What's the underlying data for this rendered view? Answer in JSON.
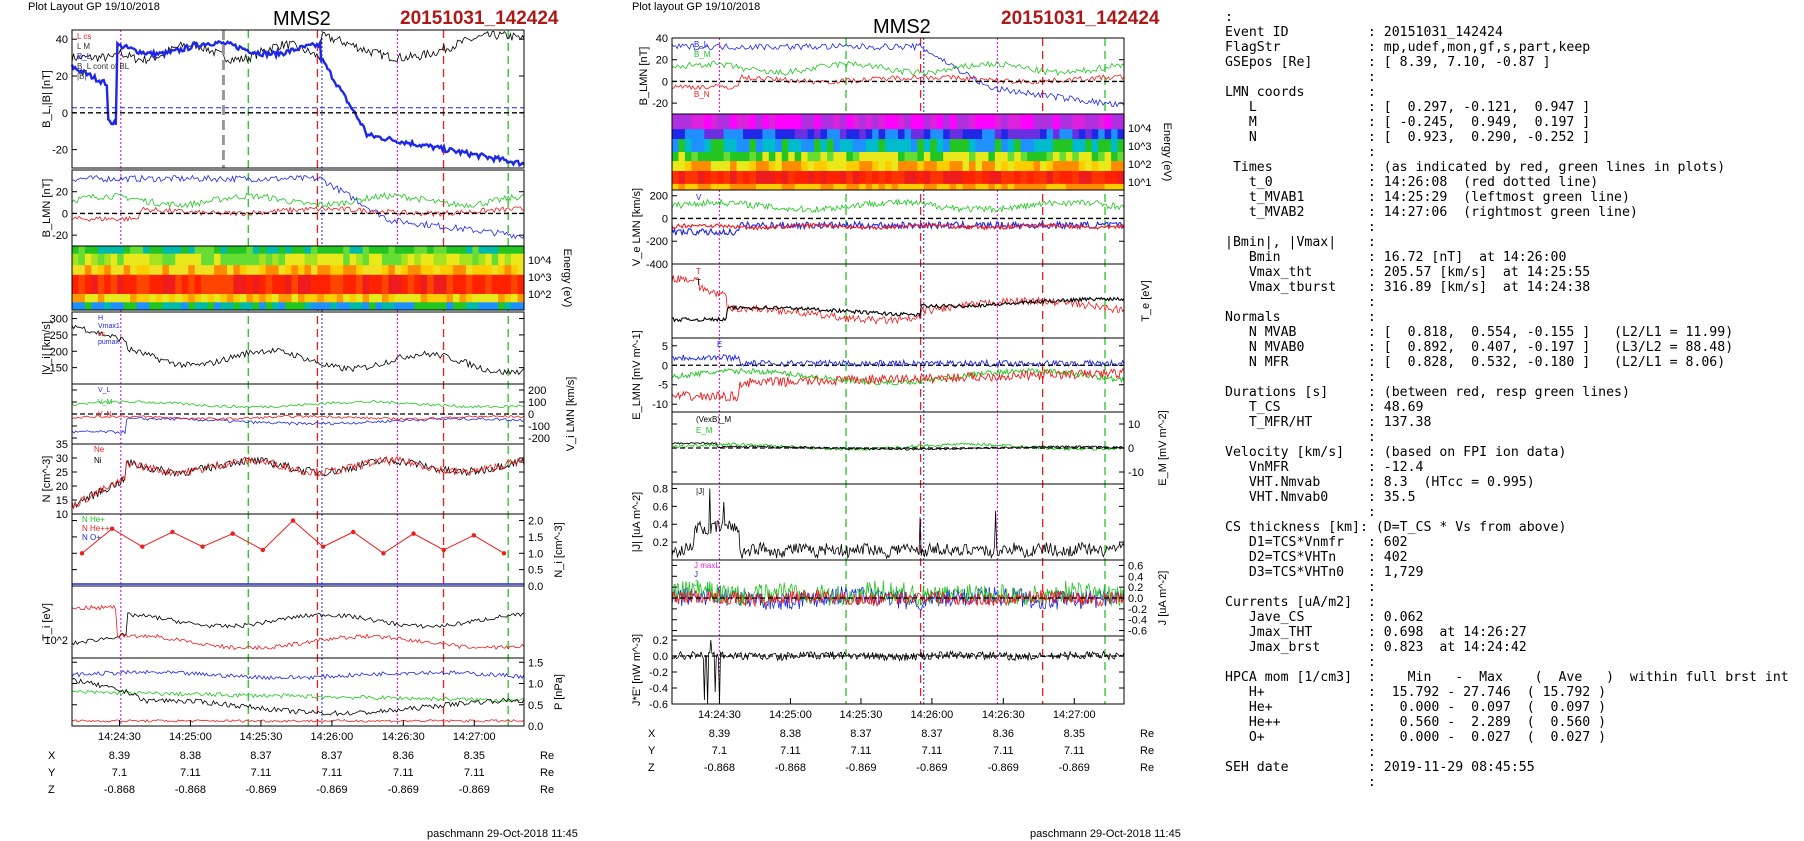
{
  "left": {
    "header": "Plot Layout GP 19/10/2018",
    "sat": "MMS2",
    "event": "20151031_142424",
    "footer": "paschmann 29-Oct-2018 11:45",
    "time_ticks": [
      "14:24:30",
      "14:25:00",
      "14:25:30",
      "14:26:00",
      "14:26:30",
      "14:27:00"
    ],
    "pos_rows": [
      {
        "label": "X",
        "values": [
          "8.39",
          "8.38",
          "8.37",
          "8.37",
          "8.36",
          "8.35"
        ],
        "unit": "Re"
      },
      {
        "label": "Y",
        "values": [
          "7.1",
          "7.11",
          "7.11",
          "7.11",
          "7.11",
          "7.11"
        ],
        "unit": "Re"
      },
      {
        "label": "Z",
        "values": [
          "-0.868",
          "-0.868",
          "-0.869",
          "-0.869",
          "-0.869",
          "-0.869"
        ],
        "unit": "Re"
      }
    ]
  },
  "right": {
    "header": "Plot layout GP 19/10/2018",
    "sat": "MMS2",
    "event": "20151031_142424",
    "footer": "paschmann 29-Oct-2018 11:45",
    "time_ticks": [
      "14:24:30",
      "14:25:00",
      "14:25:30",
      "14:26:00",
      "14:26:30",
      "14:27:00"
    ],
    "pos_rows": [
      {
        "label": "X",
        "values": [
          "8.39",
          "8.38",
          "8.37",
          "8.37",
          "8.36",
          "8.35"
        ],
        "unit": "Re"
      },
      {
        "label": "Y",
        "values": [
          "7.1",
          "7.11",
          "7.11",
          "7.11",
          "7.11",
          "7.11"
        ],
        "unit": "Re"
      },
      {
        "label": "Z",
        "values": [
          "-0.868",
          "-0.868",
          "-0.869",
          "-0.869",
          "-0.869",
          "-0.869"
        ],
        "unit": "Re"
      }
    ]
  },
  "colors": {
    "red": "#ee1c1c",
    "green": "#22c522",
    "blue": "#1e28e6",
    "magenta": "#dd22dd",
    "black": "#000000",
    "darkred": "#b01818"
  },
  "chart_data": [
    {
      "type": "line",
      "panel": "left",
      "ylabel": "B_L,|B| [nT]",
      "ylim": [
        -30,
        45
      ],
      "yticks": [
        -20,
        0,
        20,
        40
      ],
      "series": [
        {
          "name": "|B|",
          "color": "#000000"
        },
        {
          "name": "B_L",
          "color": "#1e28e6"
        }
      ],
      "legend": [
        "L cs",
        "L M",
        "B_L",
        "B_L cont of BL",
        "|B|"
      ]
    },
    {
      "type": "line",
      "panel": "left",
      "ylabel": "B_LMN [nT]",
      "ylim": [
        -30,
        40
      ],
      "yticks": [
        -20,
        0,
        20
      ],
      "series": [
        {
          "name": "B_L",
          "color": "#1e28e6"
        },
        {
          "name": "B_M",
          "color": "#22c522"
        },
        {
          "name": "B_N",
          "color": "#ee1c1c"
        }
      ]
    },
    {
      "type": "heatmap",
      "panel": "left",
      "ylabel": "Energy (eV)",
      "ytick_labels": [
        "10^2",
        "10^3",
        "10^4"
      ]
    },
    {
      "type": "line",
      "panel": "left",
      "ylabel": "|V_i| [km/s]",
      "ylim": [
        100,
        320
      ],
      "yticks": [
        150,
        200,
        250,
        300
      ],
      "series": [
        {
          "name": "V_i",
          "color": "#000000"
        }
      ],
      "legend": [
        "H",
        "Vmax1",
        "cs",
        "pumax"
      ]
    },
    {
      "type": "line",
      "panel": "left",
      "ylabel": "V_i LMN [km/s]",
      "ylim": [
        -250,
        250
      ],
      "yticks": [
        -200,
        -100,
        0,
        100,
        200
      ],
      "series": [
        {
          "name": "V_L",
          "color": "#1e28e6"
        },
        {
          "name": "V_M",
          "color": "#22c522"
        },
        {
          "name": "V_N",
          "color": "#ee1c1c"
        }
      ],
      "legend": [
        "V_L",
        "V_M",
        "V_N"
      ]
    },
    {
      "type": "line",
      "panel": "left",
      "ylabel": "N [cm^-3]",
      "ylim": [
        10,
        35
      ],
      "yticks": [
        10,
        15,
        20,
        25,
        30,
        35
      ],
      "series": [
        {
          "name": "Ne",
          "color": "#ee1c1c"
        },
        {
          "name": "Ni",
          "color": "#000000"
        }
      ],
      "legend": [
        "Ne",
        "Ni"
      ]
    },
    {
      "type": "line",
      "panel": "left",
      "ylabel": "N_i [cm^-3]",
      "ylim": [
        0,
        2.2
      ],
      "yticks": [
        0.0,
        0.5,
        1.0,
        1.5,
        2.0
      ],
      "series": [
        {
          "name": "N He++",
          "color": "#ee1c1c",
          "values": [
            1.0,
            1.75,
            1.2,
            1.65,
            1.2,
            1.6,
            1.1,
            2.0,
            1.2,
            1.65,
            1.0,
            1.6,
            1.1,
            1.55,
            1.0
          ]
        }
      ],
      "legend": [
        "N He+",
        "N He++",
        "N O+"
      ]
    },
    {
      "type": "line",
      "panel": "left",
      "ylabel": "T_i [eV]",
      "ytick_labels": [
        "10^2"
      ],
      "series": [
        {
          "name": "T_par",
          "color": "#ee1c1c"
        },
        {
          "name": "T_perp",
          "color": "#000000"
        }
      ],
      "legend": [
        "T",
        "T",
        "T"
      ]
    },
    {
      "type": "line",
      "panel": "left",
      "ylabel": "P [nPa]",
      "ylim": [
        0,
        1.6
      ],
      "yticks": [
        0.0,
        0.5,
        1.0,
        1.5
      ],
      "series": [
        {
          "name": "P_B",
          "color": "#1e28e6"
        },
        {
          "name": "P",
          "color": "#22c522"
        },
        {
          "name": "P_p",
          "color": "#000000"
        },
        {
          "name": "P_e",
          "color": "#ee1c1c"
        }
      ],
      "legend": [
        "P",
        "P",
        "P",
        "P"
      ]
    },
    {
      "type": "line",
      "panel": "right",
      "ylabel": "B_LMN [nT]",
      "ylim": [
        -30,
        40
      ],
      "yticks": [
        -20,
        0,
        20,
        40
      ],
      "series": [
        {
          "name": "B_L",
          "color": "#1e28e6"
        },
        {
          "name": "B_M",
          "color": "#22c522"
        },
        {
          "name": "B_N",
          "color": "#ee1c1c"
        }
      ],
      "legend": [
        "B_L",
        "B_M",
        "B_N"
      ]
    },
    {
      "type": "heatmap",
      "panel": "right",
      "ylabel": "Energy (eV)",
      "ytick_labels": [
        "10^1",
        "10^2",
        "10^3",
        "10^4"
      ]
    },
    {
      "type": "line",
      "panel": "right",
      "ylabel": "V_e LMN [km/s]",
      "ylim": [
        -400,
        250
      ],
      "yticks": [
        -400,
        -200,
        0,
        200
      ],
      "series": [
        {
          "name": "V_L",
          "color": "#1e28e6"
        },
        {
          "name": "V_M",
          "color": "#22c522"
        },
        {
          "name": "V_N",
          "color": "#ee1c1c"
        }
      ],
      "legend": [
        "V"
      ]
    },
    {
      "type": "line",
      "panel": "right",
      "ylabel": "T_e [eV]",
      "series": [
        {
          "name": "T_par",
          "color": "#ee1c1c"
        },
        {
          "name": "T",
          "color": "#000000"
        }
      ],
      "legend": [
        "T",
        "T"
      ]
    },
    {
      "type": "line",
      "panel": "right",
      "ylabel": "E_LMN [mV m^-1]",
      "ylim": [
        -12,
        7
      ],
      "yticks": [
        -10,
        -5,
        0,
        5
      ],
      "series": [
        {
          "name": "E_L",
          "color": "#1e28e6"
        },
        {
          "name": "E_M",
          "color": "#22c522"
        },
        {
          "name": "E_N",
          "color": "#ee1c1c"
        }
      ],
      "legend": [
        "E"
      ]
    },
    {
      "type": "line",
      "panel": "right",
      "ylabel": "E_M [mV m^-2]",
      "ylim": [
        -15,
        15
      ],
      "yticks": [
        -10,
        0,
        10
      ],
      "series": [
        {
          "name": "(VexB)_M",
          "color": "#000000"
        },
        {
          "name": "E_M",
          "color": "#22c522"
        }
      ],
      "legend": [
        "(VexB)_M",
        "E_M"
      ]
    },
    {
      "type": "line",
      "panel": "right",
      "ylabel": "|J| [uA m^-2]",
      "ylim": [
        0,
        0.85
      ],
      "yticks": [
        0.2,
        0.4,
        0.6,
        0.8
      ],
      "series": [
        {
          "name": "|J|",
          "color": "#000000"
        }
      ],
      "legend": [
        "|J|"
      ]
    },
    {
      "type": "line",
      "panel": "right",
      "ylabel": "J [uA m^-2]",
      "ylim": [
        -0.7,
        0.7
      ],
      "yticks": [
        -0.6,
        -0.4,
        -0.2,
        0.0,
        0.2,
        0.4,
        0.6
      ],
      "series": [
        {
          "name": "J_L",
          "color": "#1e28e6"
        },
        {
          "name": "J_M",
          "color": "#22c522"
        },
        {
          "name": "J_N",
          "color": "#ee1c1c"
        }
      ],
      "legend": [
        "J maxL",
        "J",
        "J"
      ]
    },
    {
      "type": "line",
      "panel": "right",
      "ylabel": "J*E' [nW m^-3]",
      "ylim": [
        -0.6,
        0.25
      ],
      "yticks": [
        -0.6,
        -0.4,
        -0.2,
        0.0,
        0.2
      ],
      "series": [
        {
          "name": "J*E'",
          "color": "#000000"
        }
      ]
    }
  ],
  "text_panel": [
    ":",
    "Event ID          : 20151031_142424",
    "FlagStr           : mp,udef,mon,gf,s,part,keep",
    "GSEpos [Re]       : [ 8.39, 7.10, -0.87 ]",
    "                  :",
    "LMN coords        :",
    "   L              : [  0.297, -0.121,  0.947 ]",
    "   M              : [ -0.245,  0.949,  0.197 ]",
    "   N              : [  0.923,  0.290, -0.252 ]",
    "                  :",
    " Times            : (as indicated by red, green lines in plots)",
    "   t_0            : 14:26:08  (red dotted line)",
    "   t_MVAB1        : 14:25:29  (leftmost green line)",
    "   t_MVAB2        : 14:27:06  (rightmost green line)",
    "                  :",
    "|Bmin|, |Vmax|    :",
    "   Bmin           : 16.72 [nT]  at 14:26:00",
    "   Vmax_tht       : 205.57 [km/s]  at 14:25:55",
    "   Vmax_tburst    : 316.89 [km/s]  at 14:24:38",
    "                  :",
    "Normals           :",
    "   N MVAB         : [  0.818,  0.554, -0.155 ]   (L2/L1 = 11.99)",
    "   N MVAB0        : [  0.892,  0.407, -0.197 ]   (L3/L2 = 88.48)",
    "   N MFR          : [  0.828,  0.532, -0.180 ]   (L2/L1 = 8.06)",
    "                  :",
    "Durations [s]     : (between red, resp green lines)",
    "   T_CS           : 48.69",
    "   T_MFR/HT       : 137.38",
    "                  :",
    "Velocity [km/s]   : (based on FPI ion data)",
    "   VnMFR          : -12.4",
    "   VHT.Nmvab      : 8.3  (HTcc = 0.995)",
    "   VHT.Nmvab0     : 35.5",
    "                  :",
    "CS thickness [km]: (D=T_CS * Vs from above)",
    "   D1=TCS*Vnmfr   : 602",
    "   D2=TCS*VHTn    : 402",
    "   D3=TCS*VHTn0   : 1,729",
    "                  :",
    "Currents [uA/m2]  :",
    "   Jave_CS        : 0.062",
    "   Jmax_THT       : 0.698  at 14:26:27",
    "   Jmax_brst      : 0.823  at 14:24:42",
    "                  :",
    "HPCA mom [1/cm3]  :    Min   -  Max    (  Ave   )  within full brst int",
    "   H+             :  15.792 - 27.746  ( 15.792 )",
    "   He+            :   0.000 -  0.097  (  0.097 )",
    "   He++           :   0.560 -  2.289  (  0.560 )",
    "   O+             :   0.000 -  0.027  (  0.027 )",
    "                  :",
    "SEH date          : 2019-11-29 08:45:55",
    "                  :"
  ]
}
